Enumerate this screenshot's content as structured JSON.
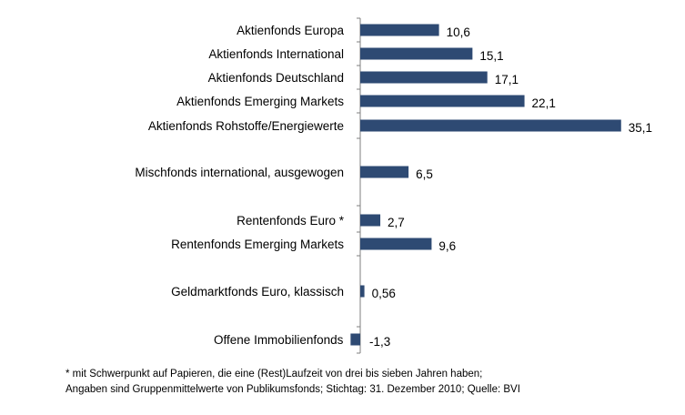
{
  "chart_data": {
    "type": "bar",
    "orientation": "horizontal",
    "bar_color": "#2E4A73",
    "categories": [
      "Aktienfonds Europa",
      "Aktienfonds International",
      "Aktienfonds Deutschland",
      "Aktienfonds Emerging Markets",
      "Aktienfonds Rohstoffe/Energiewerte",
      "Mischfonds international, ausgewogen",
      "Rentenfonds Euro *",
      "Rentenfonds Emerging Markets",
      "Geldmarktfonds Euro, klassisch",
      "Offene Immobilienfonds"
    ],
    "values": [
      10.6,
      15.1,
      17.1,
      22.1,
      35.1,
      6.5,
      2.7,
      9.6,
      0.56,
      -1.3
    ],
    "value_labels": [
      "10,6",
      "15,1",
      "17,1",
      "22,1",
      "35,1",
      "6,5",
      "2,7",
      "9,6",
      "0,56",
      "-1,3"
    ],
    "groups": [
      1,
      1,
      1,
      1,
      1,
      2,
      3,
      3,
      4,
      5
    ],
    "xlim": [
      -2,
      37
    ],
    "grid": false,
    "legend": "none"
  },
  "footnotes": {
    "line1": "* mit Schwerpunkt auf Papieren, die eine (Rest)Laufzeit von drei bis sieben Jahren haben;",
    "line2": "Angaben sind Gruppenmittelwerte von Publikumsfonds; Stichtag: 31. Dezember 2010; Quelle: BVI"
  }
}
